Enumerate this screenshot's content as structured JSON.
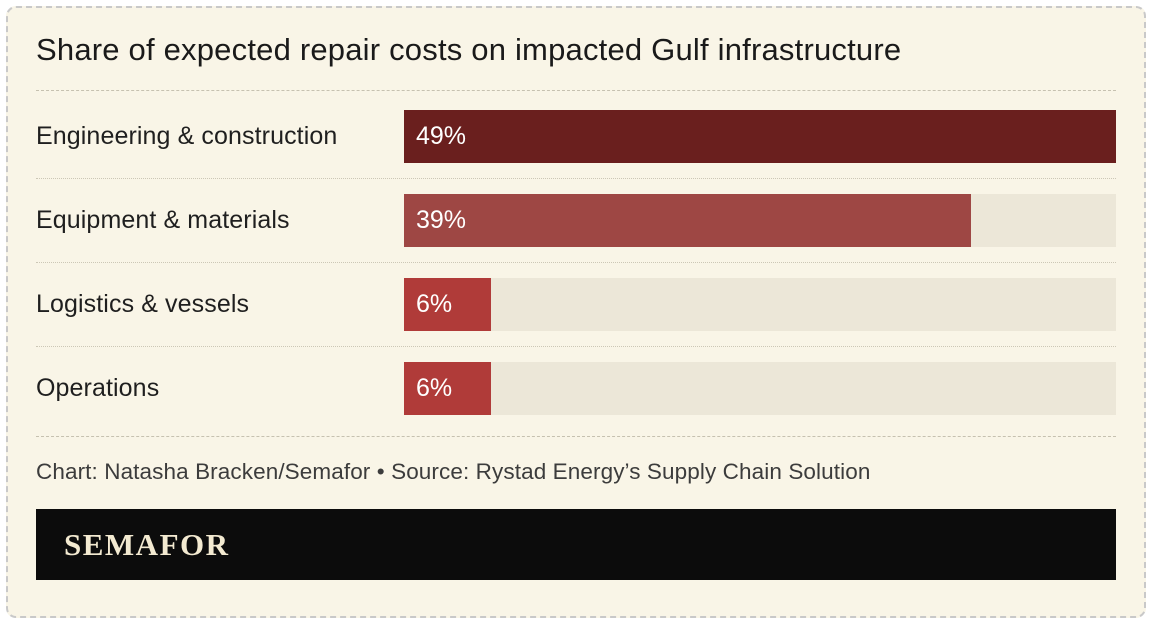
{
  "chart_data": {
    "type": "bar",
    "orientation": "horizontal",
    "title": "Share of expected repair costs on impacted Gulf infrastructure",
    "categories": [
      "Engineering & construction",
      "Equipment & materials",
      "Logistics & vessels",
      "Operations"
    ],
    "values": [
      49,
      39,
      6,
      6
    ],
    "value_labels": [
      "49%",
      "39%",
      "6%",
      "6%"
    ],
    "max_value": 49,
    "bar_colors": [
      "#6a1f1e",
      "#9e4744",
      "#b03b39",
      "#b03b39"
    ],
    "track_color": "#ece7d8",
    "background_color": "#f9f5e7",
    "grid": false,
    "legend": "none"
  },
  "footer": {
    "credit": "Chart: Natasha Bracken/Semafor • Source: Rystad Energy’s Supply Chain Solution"
  },
  "brand": {
    "logo_text": "SEMAFOR"
  }
}
